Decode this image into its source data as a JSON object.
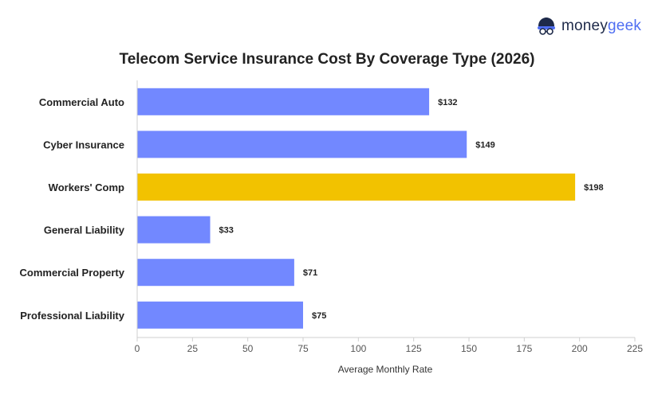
{
  "brand": {
    "name_part1": "money",
    "name_part2": "geek"
  },
  "colors": {
    "default_bar": "#7288ff",
    "highlight_bar": "#f2c200",
    "axis": "#cfcfcf",
    "text": "#222222",
    "tick_text": "#555555"
  },
  "chart_data": {
    "type": "bar",
    "orientation": "horizontal",
    "title": "Telecom Service Insurance Cost By Coverage Type (2026)",
    "xlabel": "Average Monthly Rate",
    "ylabel": "",
    "xlim": [
      0,
      225
    ],
    "xticks": [
      0,
      25,
      50,
      75,
      100,
      125,
      150,
      175,
      200,
      225
    ],
    "grid": false,
    "categories": [
      "Commercial Auto",
      "Cyber Insurance",
      "Workers' Comp",
      "General Liability",
      "Commercial Property",
      "Professional Liability"
    ],
    "values": [
      132,
      149,
      198,
      33,
      71,
      75
    ],
    "value_labels": [
      "$132",
      "$149",
      "$198",
      "$33",
      "$71",
      "$75"
    ],
    "highlight_category": "Workers' Comp"
  }
}
